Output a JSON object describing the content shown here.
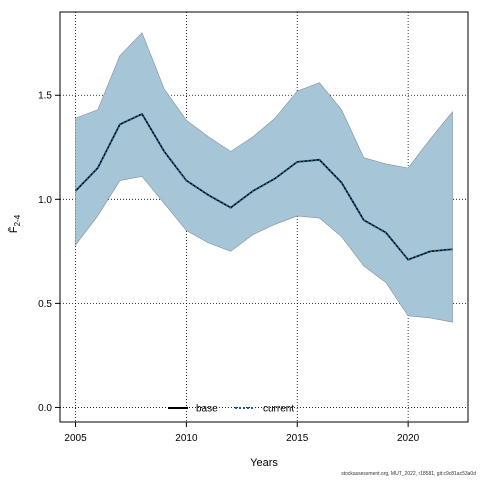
{
  "chart_data": {
    "type": "line",
    "xlabel": "Years",
    "ylabel": "F̄",
    "ylabel_sub": "2-4",
    "xlim": [
      2004.3,
      2022.7
    ],
    "ylim": [
      -0.07,
      1.9
    ],
    "x_ticks": [
      2005,
      2010,
      2015,
      2020
    ],
    "y_ticks": [
      0.0,
      0.5,
      1.0,
      1.5
    ],
    "y_tick_labels": [
      "0.0",
      "0.5",
      "1.0",
      "1.5"
    ],
    "grid": "dotted",
    "legend_position": "bottom",
    "band": {
      "x": [
        2005,
        2006,
        2007,
        2008,
        2009,
        2010,
        2011,
        2012,
        2013,
        2014,
        2015,
        2016,
        2017,
        2018,
        2019,
        2020,
        2021,
        2022
      ],
      "upper": [
        1.39,
        1.43,
        1.69,
        1.8,
        1.53,
        1.38,
        1.3,
        1.23,
        1.3,
        1.39,
        1.52,
        1.56,
        1.43,
        1.2,
        1.17,
        1.15,
        1.29,
        1.42
      ],
      "lower": [
        0.78,
        0.92,
        1.09,
        1.11,
        0.98,
        0.85,
        0.79,
        0.75,
        0.83,
        0.88,
        0.92,
        0.91,
        0.82,
        0.68,
        0.6,
        0.44,
        0.43,
        0.41
      ],
      "color": "#a6c6d7"
    },
    "series": [
      {
        "name": "base",
        "color": "#000000",
        "style": "solid",
        "x": [
          2005,
          2006,
          2007,
          2008,
          2009,
          2010,
          2011,
          2012,
          2013,
          2014,
          2015,
          2016,
          2017,
          2018,
          2019,
          2020,
          2021,
          2022
        ],
        "values": [
          1.04,
          1.15,
          1.36,
          1.41,
          1.23,
          1.09,
          1.02,
          0.96,
          1.04,
          1.1,
          1.18,
          1.19,
          1.08,
          0.9,
          0.84,
          0.71,
          0.75,
          0.76
        ]
      },
      {
        "name": "current",
        "color": "#1f5f8b",
        "style": "dashed",
        "x": [
          2005,
          2006,
          2007,
          2008,
          2009,
          2010,
          2011,
          2012,
          2013,
          2014,
          2015,
          2016,
          2017,
          2018,
          2019,
          2020,
          2021,
          2022
        ],
        "values": [
          1.04,
          1.15,
          1.36,
          1.41,
          1.23,
          1.09,
          1.02,
          0.96,
          1.04,
          1.1,
          1.18,
          1.19,
          1.08,
          0.9,
          0.84,
          0.71,
          0.75,
          0.76
        ]
      }
    ]
  },
  "footer": "stockassessment.org, MUT_2022, r18581, git:c9c81ac53a0d"
}
